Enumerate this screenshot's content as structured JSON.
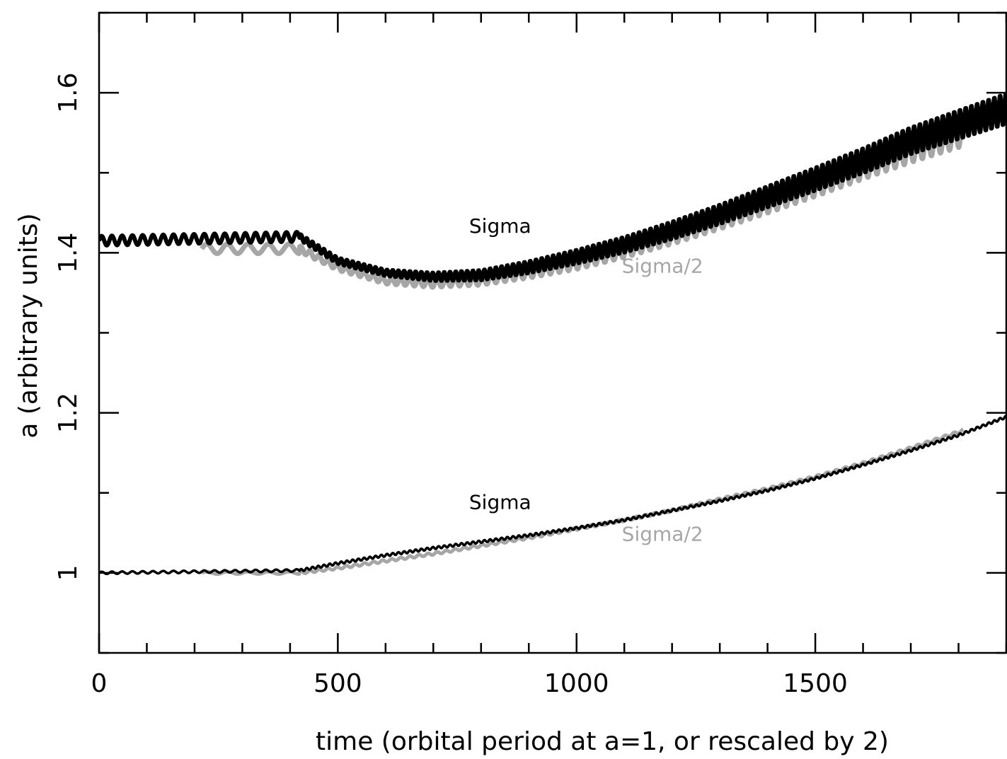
{
  "chart_data": {
    "type": "line",
    "title": "",
    "xlabel": "time (orbital period at a=1, or rescaled by 2)",
    "ylabel": "a (arbitrary units)",
    "xlim": [
      0,
      1900
    ],
    "ylim": [
      0.9,
      1.7
    ],
    "x_ticks": [
      0,
      500,
      1000,
      1500
    ],
    "x_tick_labels": [
      "0",
      "500",
      "1000",
      "1500"
    ],
    "y_ticks": [
      1.0,
      1.2,
      1.4,
      1.6
    ],
    "y_tick_labels": [
      "1",
      "1.2",
      "1.4",
      "1.6"
    ],
    "x_minor_step": 100,
    "y_minor_step": 0.1,
    "grid": false,
    "colors": {
      "Sigma": "#000000",
      "Sigma/2": "#a6a6a6"
    },
    "annotations": [
      {
        "text": "Sigma",
        "x": 840,
        "y": 1.425,
        "color": "#000000"
      },
      {
        "text": "Sigma/2",
        "x": 1180,
        "y": 1.375,
        "color": "#a6a6a6"
      },
      {
        "text": "Sigma",
        "x": 840,
        "y": 1.08,
        "color": "#000000"
      },
      {
        "text": "Sigma/2",
        "x": 1180,
        "y": 1.04,
        "color": "#a6a6a6"
      }
    ],
    "series": [
      {
        "group": "upper",
        "label": "Sigma",
        "color": "#000000",
        "x": [
          0,
          420,
          500,
          600,
          700,
          800,
          900,
          1000,
          1100,
          1200,
          1300,
          1400,
          1500,
          1600,
          1700,
          1800,
          1900
        ],
        "y": [
          1.415,
          1.42,
          1.39,
          1.375,
          1.37,
          1.372,
          1.382,
          1.395,
          1.41,
          1.428,
          1.448,
          1.47,
          1.492,
          1.515,
          1.54,
          1.56,
          1.58
        ]
      },
      {
        "group": "upper",
        "label": "Sigma/2",
        "color": "#a6a6a6",
        "x": [
          215,
          420,
          500,
          600,
          700,
          800,
          900,
          1000,
          1100,
          1200,
          1300,
          1400,
          1500,
          1600,
          1700,
          1810
        ],
        "y": [
          1.405,
          1.405,
          1.382,
          1.365,
          1.362,
          1.366,
          1.376,
          1.388,
          1.404,
          1.422,
          1.442,
          1.463,
          1.485,
          1.508,
          1.53,
          1.552
        ]
      },
      {
        "group": "lower",
        "label": "Sigma",
        "color": "#000000",
        "x": [
          0,
          420,
          500,
          600,
          700,
          800,
          900,
          1000,
          1100,
          1200,
          1300,
          1400,
          1500,
          1600,
          1700,
          1800,
          1900
        ],
        "y": [
          1.0,
          1.003,
          1.012,
          1.022,
          1.031,
          1.039,
          1.047,
          1.056,
          1.066,
          1.078,
          1.09,
          1.103,
          1.118,
          1.135,
          1.153,
          1.172,
          1.195
        ]
      },
      {
        "group": "lower",
        "label": "Sigma/2",
        "color": "#a6a6a6",
        "x": [
          215,
          420,
          500,
          600,
          700,
          800,
          900,
          1000,
          1100,
          1200,
          1300,
          1400,
          1500,
          1600,
          1700,
          1810
        ],
        "y": [
          1.0,
          1.0,
          1.006,
          1.015,
          1.024,
          1.034,
          1.044,
          1.055,
          1.066,
          1.078,
          1.092,
          1.105,
          1.12,
          1.137,
          1.156,
          1.178
        ]
      }
    ]
  }
}
